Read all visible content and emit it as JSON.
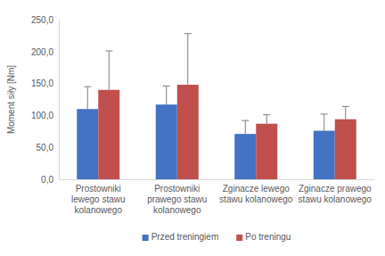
{
  "chart_data": {
    "type": "bar",
    "y_label": "Moment siły [Nm]",
    "categories": [
      "Prostowniki lewego stawu kolanowego",
      "Prostowniki prawego stawu kolanowego",
      "Zginacze lewego stawu kolanowego",
      "Zginacze prawego stawu kolanowego"
    ],
    "series": [
      {
        "name": "Przed treningiem",
        "color": "#4472c4",
        "values": [
          110,
          117,
          71,
          76
        ],
        "errors": [
          35,
          29,
          21,
          26
        ]
      },
      {
        "name": "Po treningu",
        "color": "#c0504d",
        "values": [
          140,
          148,
          87,
          94
        ],
        "errors": [
          61,
          80,
          14,
          20
        ]
      }
    ],
    "ylim": [
      0,
      250
    ],
    "yticks": [
      {
        "value": 0,
        "label": "0,0"
      },
      {
        "value": 50,
        "label": "50,0"
      },
      {
        "value": 100,
        "label": "100,0"
      },
      {
        "value": 150,
        "label": "150,0"
      },
      {
        "value": 200,
        "label": "200,0"
      },
      {
        "value": 250,
        "label": "250,0"
      }
    ],
    "grid": false,
    "legend": "bottom"
  }
}
